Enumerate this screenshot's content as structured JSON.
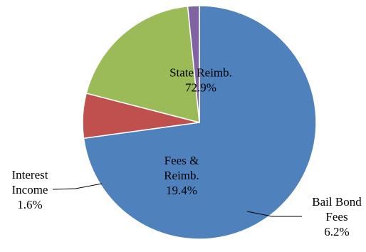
{
  "chart_data": {
    "type": "pie",
    "title": "",
    "slices": [
      {
        "name": "State Reimb.",
        "value": 72.9,
        "percent_label": "72.9%",
        "color": "#4f81bd",
        "label_lines": [
          "State Reimb.",
          "72.9%"
        ]
      },
      {
        "name": "Bail Bond Fees",
        "value": 6.2,
        "percent_label": "6.2%",
        "color": "#c0504d",
        "label_lines": [
          "Bail Bond",
          "Fees",
          "6.2%"
        ]
      },
      {
        "name": "Fees & Reimb.",
        "value": 19.4,
        "percent_label": "19.4%",
        "color": "#9bbb59",
        "label_lines": [
          "Fees &",
          "Reimb.",
          "19.4%"
        ]
      },
      {
        "name": "Interest Income",
        "value": 1.6,
        "percent_label": "1.6%",
        "color": "#8064a2",
        "label_lines": [
          "Interest",
          "Income",
          "1.6%"
        ]
      }
    ],
    "start_angle_deg": 0,
    "direction": "clockwise",
    "legend": "none"
  }
}
